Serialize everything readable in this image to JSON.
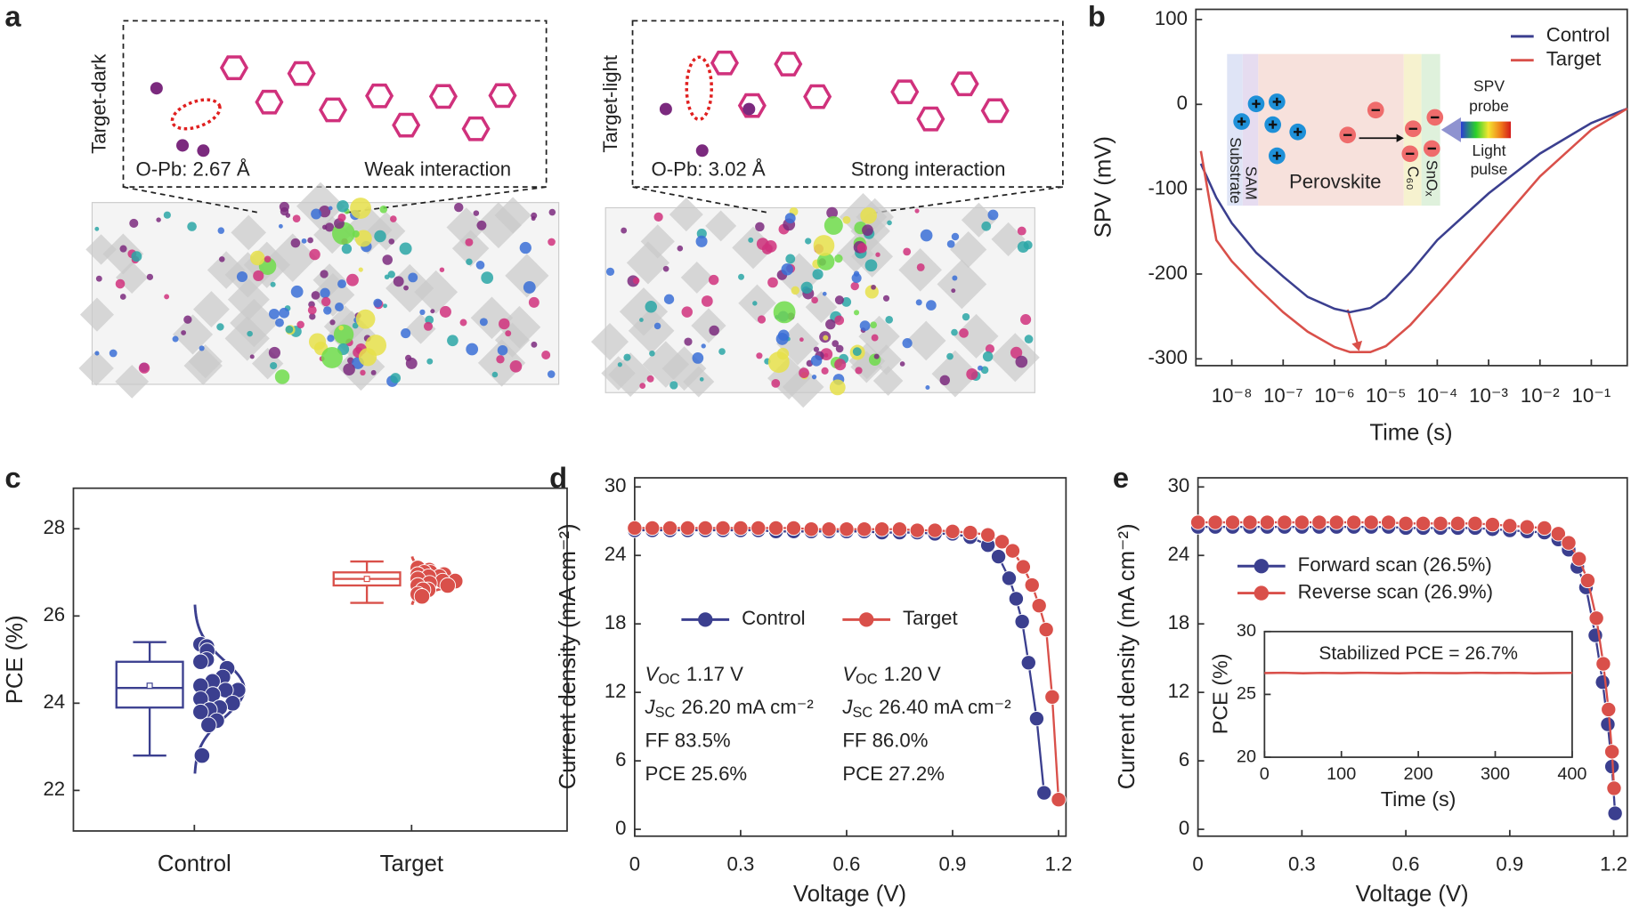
{
  "panel_labels": [
    "a",
    "b",
    "c",
    "d",
    "e"
  ],
  "figure_a": [
    {
      "side_label": "Target-dark",
      "bond": "O-Pb: 2.67 Å",
      "interaction": "Weak interaction"
    },
    {
      "side_label": "Target-light",
      "bond": "O-Pb: 3.02 Å",
      "interaction": "Strong interaction"
    }
  ],
  "figure_b_inset": {
    "layers": [
      "Substrate",
      "SAM",
      "Perovskite",
      "C₆₀",
      "SnOₓ"
    ],
    "probe_label": [
      "SPV",
      "probe"
    ],
    "pulse_label": [
      "Light",
      "pulse"
    ]
  },
  "chart_data": [
    {
      "type": "line",
      "xscale": "log",
      "xlabel": "Time (s)",
      "ylabel": "SPV (mV)",
      "legend": "upper right",
      "xlim": [
        2e-09,
        0.5
      ],
      "ylim": [
        -308,
        112
      ],
      "xticks": [
        {
          "value": 1e-08,
          "label": "10⁻⁸"
        },
        {
          "value": 1e-07,
          "label": "10⁻⁷"
        },
        {
          "value": 1e-06,
          "label": "10⁻⁶"
        },
        {
          "value": 1e-05,
          "label": "10⁻⁵"
        },
        {
          "value": 0.0001,
          "label": "10⁻⁴"
        },
        {
          "value": 0.001,
          "label": "10⁻³"
        },
        {
          "value": 0.01,
          "label": "10⁻²"
        },
        {
          "value": 0.1,
          "label": "10⁻¹"
        }
      ],
      "yticks": [
        -300,
        -200,
        -100,
        0,
        100
      ],
      "x": [
        2.5e-09,
        5e-09,
        1e-08,
        3e-08,
        1e-07,
        3e-07,
        1e-06,
        2e-06,
        5e-06,
        1e-05,
        3e-05,
        0.0001,
        0.001,
        0.01,
        0.1,
        0.5
      ],
      "series": [
        {
          "name": "Control",
          "color": "#3b3f8f",
          "values": [
            -70,
            -110,
            -140,
            -175,
            -203,
            -227,
            -241,
            -245,
            -240,
            -228,
            -198,
            -160,
            -105,
            -58,
            -22,
            -5
          ]
        },
        {
          "name": "Target",
          "color": "#d9504a",
          "values": [
            -55,
            -160,
            -185,
            -215,
            -245,
            -268,
            -286,
            -292,
            -292,
            -285,
            -260,
            -225,
            -155,
            -85,
            -30,
            -5
          ]
        }
      ]
    },
    {
      "type": "box",
      "ylabel": "PCE (%)",
      "ylim": [
        21.07,
        28.93
      ],
      "yticks": [
        22,
        24,
        26,
        28
      ],
      "categories": [
        "Control",
        "Target"
      ],
      "groups": [
        {
          "color": "#3b3f8f",
          "whisker_low": 22.8,
          "q1": 23.9,
          "median": 24.35,
          "q3": 24.95,
          "whisker_high": 25.4,
          "mean": 24.4,
          "points": [
            25.35,
            25.3,
            25.2,
            25.0,
            24.95,
            24.8,
            24.6,
            24.5,
            24.4,
            24.3,
            24.3,
            24.2,
            24.1,
            24.0,
            23.9,
            23.85,
            23.8,
            23.6,
            23.5,
            22.8
          ]
        },
        {
          "color": "#d9504a",
          "whisker_low": 26.3,
          "q1": 26.7,
          "median": 26.85,
          "q3": 27.0,
          "whisker_high": 27.25,
          "mean": 26.85,
          "points": [
            27.1,
            27.05,
            27.0,
            27.0,
            26.95,
            26.95,
            26.9,
            26.9,
            26.85,
            26.8,
            26.8,
            26.75,
            26.7,
            26.7,
            26.6,
            26.6,
            26.5,
            26.45
          ]
        }
      ]
    },
    {
      "type": "line",
      "markers": true,
      "xlabel": "Voltage (V)",
      "ylabel": "Current density (mA cm⁻²)",
      "legend": "center",
      "xlim": [
        0,
        1.221
      ],
      "ylim": [
        -0.6,
        30.8
      ],
      "xticks": [
        0,
        0.3,
        0.6,
        0.9,
        1.2
      ],
      "yticks": [
        0,
        6,
        12,
        18,
        24,
        30
      ],
      "series": [
        {
          "name": "Control",
          "color": "#3b3f8f",
          "x": [
            0,
            0.05,
            0.1,
            0.15,
            0.2,
            0.25,
            0.3,
            0.35,
            0.4,
            0.45,
            0.5,
            0.55,
            0.6,
            0.65,
            0.7,
            0.75,
            0.8,
            0.85,
            0.9,
            0.95,
            1.0,
            1.03,
            1.06,
            1.08,
            1.097,
            1.115,
            1.138,
            1.159
          ],
          "values": [
            26.2,
            26.2,
            26.2,
            26.2,
            26.2,
            26.2,
            26.2,
            26.2,
            26.1,
            26.1,
            26.1,
            26.1,
            26.1,
            26.1,
            26.0,
            26.0,
            26.0,
            25.9,
            25.9,
            25.6,
            24.9,
            23.9,
            22.0,
            20.2,
            18.2,
            14.6,
            9.7,
            3.2
          ]
        },
        {
          "name": "Target",
          "color": "#d9504a",
          "x": [
            0,
            0.05,
            0.1,
            0.15,
            0.2,
            0.25,
            0.3,
            0.35,
            0.4,
            0.45,
            0.5,
            0.55,
            0.6,
            0.65,
            0.7,
            0.75,
            0.8,
            0.85,
            0.9,
            0.95,
            1.0,
            1.04,
            1.07,
            1.1,
            1.125,
            1.145,
            1.165,
            1.182,
            1.2
          ],
          "values": [
            26.4,
            26.4,
            26.4,
            26.4,
            26.4,
            26.4,
            26.4,
            26.4,
            26.4,
            26.4,
            26.3,
            26.3,
            26.3,
            26.3,
            26.3,
            26.3,
            26.2,
            26.2,
            26.1,
            26.0,
            25.8,
            25.2,
            24.4,
            23.0,
            21.4,
            19.6,
            17.5,
            11.6,
            2.6
          ]
        }
      ],
      "annotations": [
        [
          {
            "symbol": "V",
            "sub": "OC",
            "text": "1.17 V"
          },
          {
            "symbol": "J",
            "sub": "SC",
            "text": "26.20 mA cm⁻²"
          },
          {
            "text": "FF 83.5%"
          },
          {
            "text": "PCE 25.6%"
          }
        ],
        [
          {
            "symbol": "V",
            "sub": "OC",
            "text": "1.20 V"
          },
          {
            "symbol": "J",
            "sub": "SC",
            "text": "26.40 mA cm⁻²"
          },
          {
            "text": "FF 86.0%"
          },
          {
            "text": "PCE 27.2%"
          }
        ]
      ]
    },
    {
      "type": "line",
      "markers": true,
      "xlabel": "Voltage (V)",
      "ylabel": "Current density (mA cm⁻²)",
      "legend": "upper left",
      "xlim": [
        0,
        1.239
      ],
      "ylim": [
        -0.6,
        30.8
      ],
      "xticks": [
        0,
        0.3,
        0.6,
        0.9,
        1.2
      ],
      "yticks": [
        0,
        6,
        12,
        18,
        24,
        30
      ],
      "series": [
        {
          "name": "Forward scan (26.5%)",
          "color": "#3b3f8f",
          "x": [
            0,
            0.05,
            0.1,
            0.15,
            0.2,
            0.25,
            0.3,
            0.35,
            0.4,
            0.45,
            0.5,
            0.55,
            0.6,
            0.65,
            0.7,
            0.75,
            0.8,
            0.85,
            0.9,
            0.95,
            1.0,
            1.04,
            1.07,
            1.095,
            1.12,
            1.147,
            1.168,
            1.183,
            1.195,
            1.204
          ],
          "values": [
            26.5,
            26.5,
            26.5,
            26.5,
            26.5,
            26.5,
            26.5,
            26.5,
            26.5,
            26.5,
            26.5,
            26.5,
            26.4,
            26.4,
            26.4,
            26.4,
            26.4,
            26.3,
            26.2,
            26.1,
            26.0,
            25.4,
            24.5,
            23.0,
            21.2,
            17.0,
            12.9,
            9.2,
            5.5,
            1.4
          ]
        },
        {
          "name": "Reverse scan (26.9%)",
          "color": "#d9504a",
          "x": [
            0,
            0.05,
            0.1,
            0.15,
            0.2,
            0.25,
            0.3,
            0.35,
            0.4,
            0.45,
            0.5,
            0.55,
            0.6,
            0.65,
            0.7,
            0.75,
            0.8,
            0.85,
            0.9,
            0.95,
            1.0,
            1.04,
            1.07,
            1.1,
            1.125,
            1.15,
            1.17,
            1.185,
            1.195,
            1.201
          ],
          "values": [
            26.9,
            26.9,
            26.9,
            26.9,
            26.9,
            26.9,
            26.9,
            26.9,
            26.9,
            26.9,
            26.9,
            26.9,
            26.8,
            26.8,
            26.8,
            26.8,
            26.8,
            26.7,
            26.6,
            26.5,
            26.4,
            25.9,
            25.1,
            23.7,
            21.8,
            18.5,
            14.5,
            10.5,
            6.8,
            3.6
          ]
        }
      ]
    },
    {
      "type": "line",
      "title": "Stabilized PCE = 26.7%",
      "xlabel": "Time (s)",
      "ylabel": "PCE (%)",
      "xlim": [
        0,
        400
      ],
      "ylim": [
        20,
        30
      ],
      "xticks": [
        0,
        100,
        200,
        300,
        400
      ],
      "yticks": [
        20,
        25,
        30
      ],
      "x": [
        0,
        25,
        50,
        75,
        100,
        125,
        150,
        175,
        200,
        225,
        250,
        275,
        300,
        325,
        350,
        375,
        400
      ],
      "series": [
        {
          "color": "#d9504a",
          "values": [
            26.7,
            26.72,
            26.68,
            26.71,
            26.69,
            26.72,
            26.7,
            26.68,
            26.71,
            26.7,
            26.69,
            26.72,
            26.7,
            26.71,
            26.68,
            26.7,
            26.71
          ]
        }
      ]
    }
  ]
}
